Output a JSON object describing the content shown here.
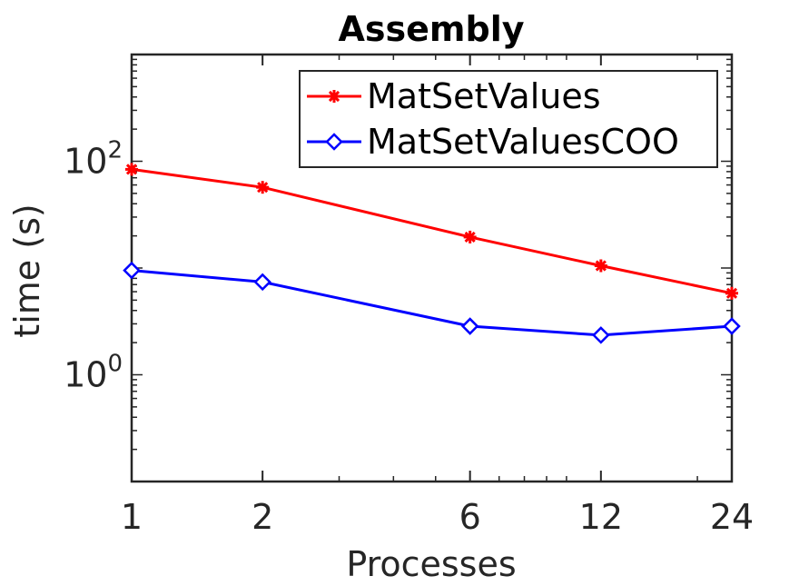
{
  "chart_data": {
    "type": "line",
    "title": "Assembly",
    "xlabel": "Processes",
    "ylabel": "time (s)",
    "xscale": "log",
    "yscale": "log",
    "xlim": [
      1,
      24
    ],
    "ylim": [
      0.1,
      1000
    ],
    "x": [
      1,
      2,
      6,
      12,
      24
    ],
    "xticks": [
      "1",
      "2",
      "6",
      "12",
      "24"
    ],
    "yticks": [
      {
        "value": 1,
        "base": "10",
        "exp": "0"
      },
      {
        "value": 100,
        "base": "10",
        "exp": "2"
      }
    ],
    "series": [
      {
        "name": "MatSetValues",
        "color": "#ff0000",
        "marker": "asterisk",
        "values": [
          84,
          57,
          19.5,
          10.5,
          5.8
        ]
      },
      {
        "name": "MatSetValuesCOO",
        "color": "#0000ff",
        "marker": "diamond",
        "values": [
          9.5,
          7.4,
          2.85,
          2.35,
          2.85
        ]
      }
    ],
    "legend": "top-right",
    "grid": false
  }
}
